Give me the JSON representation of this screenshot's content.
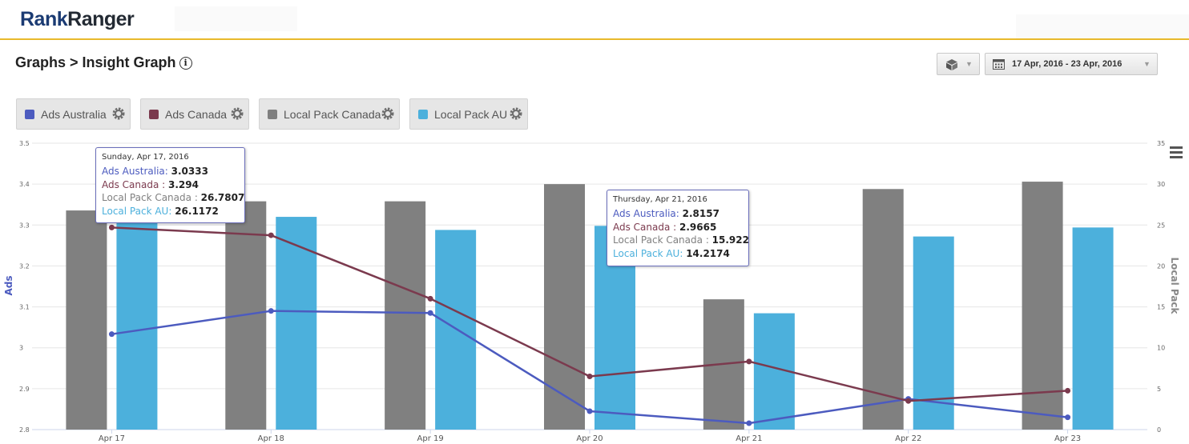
{
  "header": {
    "logo_part1": "Rank",
    "logo_part2": "Ranger"
  },
  "page": {
    "title": "Graphs > Insight Graph"
  },
  "toolbar": {
    "date_range": "17 Apr, 2016 - 23 Apr, 2016"
  },
  "legend": [
    {
      "label": "Ads Australia",
      "color": "#4c5bbf"
    },
    {
      "label": "Ads Canada",
      "color": "#7b3a4e"
    },
    {
      "label": "Local Pack Canada",
      "color": "#7f7f7f"
    },
    {
      "label": "Local Pack AU",
      "color": "#4cb0dc"
    }
  ],
  "tooltip1": {
    "date": "Sunday, Apr 17, 2016",
    "rows": [
      {
        "name": "Ads Australia",
        "sep": ": ",
        "value": "3.0333"
      },
      {
        "name": "Ads Canada",
        "sep": " : ",
        "value": "3.294"
      },
      {
        "name": "Local Pack Canada",
        "sep": " : ",
        "value": "26.7807"
      },
      {
        "name": "Local Pack AU",
        "sep": ": ",
        "value": "26.1172"
      }
    ]
  },
  "tooltip2": {
    "date": "Thursday, Apr 21, 2016",
    "rows": [
      {
        "name": "Ads Australia",
        "sep": ": ",
        "value": "2.8157"
      },
      {
        "name": "Ads Canada",
        "sep": " : ",
        "value": "2.9665"
      },
      {
        "name": "Local Pack Canada",
        "sep": " : ",
        "value": "15.922"
      },
      {
        "name": "Local Pack AU",
        "sep": ": ",
        "value": "14.2174"
      }
    ]
  },
  "chart_data": {
    "type": "bar",
    "categories": [
      "Apr 17",
      "Apr 18",
      "Apr 19",
      "Apr 20",
      "Apr 21",
      "Apr 22",
      "Apr 23"
    ],
    "ylabel": "Ads",
    "y2label": "Local Pack",
    "ylim": [
      2.8,
      3.5
    ],
    "y2lim": [
      0,
      35
    ],
    "left_ticks": [
      "2.8",
      "2.9",
      "3",
      "3.1",
      "3.2",
      "3.3",
      "3.4",
      "3.5"
    ],
    "left_ticks_display": [
      "2.8",
      "2.9",
      "3",
      "3.1",
      "3.2",
      "3.3",
      "3.4",
      "3.5"
    ],
    "right_ticks": [
      "0",
      "5",
      "10",
      "15",
      "20",
      "25",
      "30",
      "35"
    ],
    "series": [
      {
        "name": "Ads Australia",
        "type": "line",
        "axis": "left",
        "color": "#4c5bbf",
        "values": [
          3.0333,
          3.09,
          3.085,
          2.845,
          2.8157,
          2.875,
          2.83
        ]
      },
      {
        "name": "Ads Canada",
        "type": "line",
        "axis": "left",
        "color": "#7b3a4e",
        "values": [
          3.294,
          3.275,
          3.12,
          2.93,
          2.9665,
          2.87,
          2.895
        ]
      },
      {
        "name": "Local Pack Canada",
        "type": "bar",
        "axis": "right",
        "color": "#808080",
        "values": [
          26.7807,
          27.9,
          27.9,
          30.0,
          15.922,
          29.4,
          30.3
        ]
      },
      {
        "name": "Local Pack AU",
        "type": "bar",
        "axis": "right",
        "color": "#4cb0dc",
        "values": [
          26.1172,
          26.0,
          24.4,
          24.9,
          14.2174,
          23.6,
          24.7
        ]
      }
    ]
  }
}
